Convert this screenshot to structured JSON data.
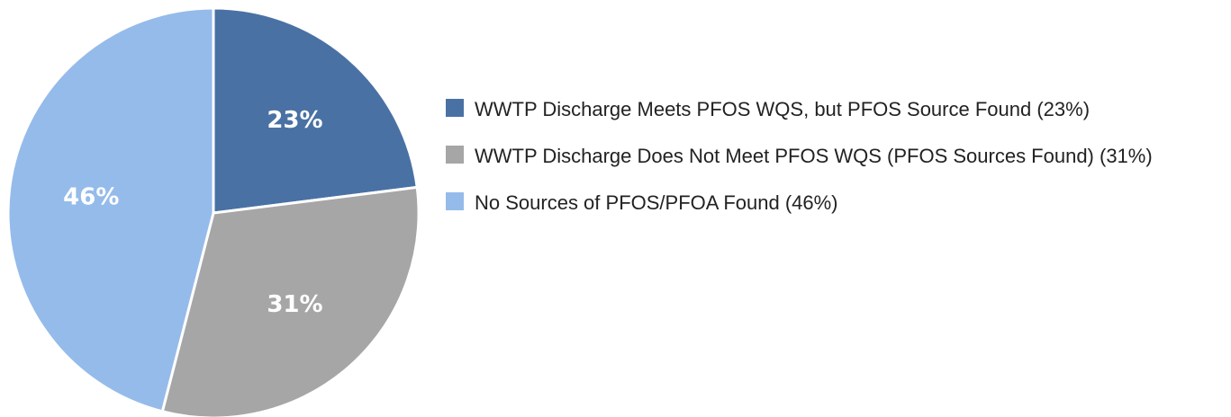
{
  "chart_data": {
    "type": "pie",
    "categories": [
      "WWTP Discharge Meets PFOS WQS, but PFOS Source Found (23%)",
      "WWTP Discharge Does Not Meet PFOS WQS (PFOS Sources Found) (31%)",
      "No Sources of PFOS/PFOA Found (46%)"
    ],
    "values": [
      23,
      31,
      46
    ],
    "value_labels": [
      "23%",
      "31%",
      "46%"
    ],
    "colors": [
      "#4a71a4",
      "#a6a6a6",
      "#95bbea"
    ],
    "legend": "right"
  }
}
